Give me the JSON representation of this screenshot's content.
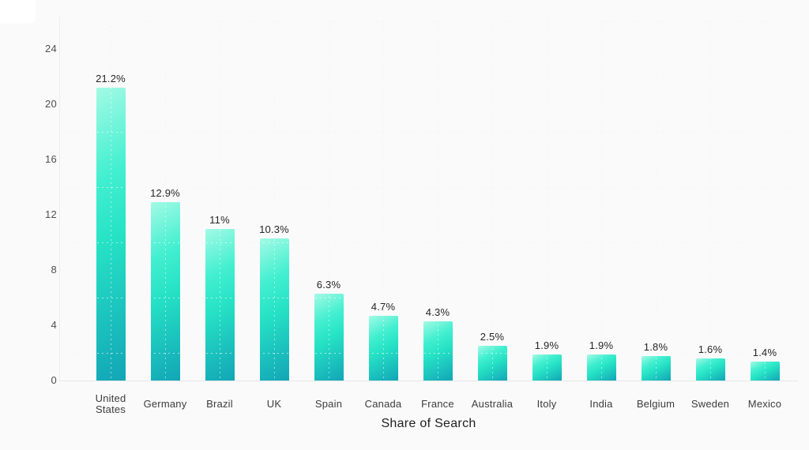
{
  "chart_data": {
    "type": "bar",
    "title": "",
    "xlabel": "Share of Search",
    "ylabel": "",
    "categories": [
      "United States",
      "Germany",
      "Brazil",
      "UK",
      "Spain",
      "Canada",
      "France",
      "Australia",
      "Itoly",
      "India",
      "Belgium",
      "Sweden",
      "Mexico"
    ],
    "values": [
      21.2,
      12.9,
      11,
      10.3,
      6.3,
      4.7,
      4.3,
      2.5,
      1.9,
      1.9,
      1.8,
      1.6,
      1.4
    ],
    "value_labels": [
      "21.2%",
      "12.9%",
      "11%",
      "10.3%",
      "6.3%",
      "4.7%",
      "4.3%",
      "2.5%",
      "1.9%",
      "1.9%",
      "1.8%",
      "1.6%",
      "1.4%"
    ],
    "y_tick_labels": [
      "0",
      "4",
      "8",
      "12",
      "16",
      "20",
      "24"
    ],
    "y_tick_values": [
      0,
      4,
      8,
      12,
      16,
      20,
      24
    ],
    "gridline_values": [
      2,
      6,
      10,
      14,
      18,
      22,
      26
    ],
    "ylim": [
      0,
      26
    ],
    "grid": "dotted, horizontal offset between labeled ticks, vertical at category centers",
    "legend_position": "none",
    "colors": {
      "bar_gradient_start": "#a3fae5",
      "bar_gradient_mid": "#26e2c5",
      "bar_gradient_end": "#12a5b6",
      "gridline": "#e4e4e4",
      "axis_line": "#e6e6e6",
      "value_label_text": "#262626",
      "tick_text": "#4f4f4f",
      "category_text": "#3d3d3d",
      "axis_title_text": "#1f1f1f",
      "background": "#fafafa"
    }
  }
}
